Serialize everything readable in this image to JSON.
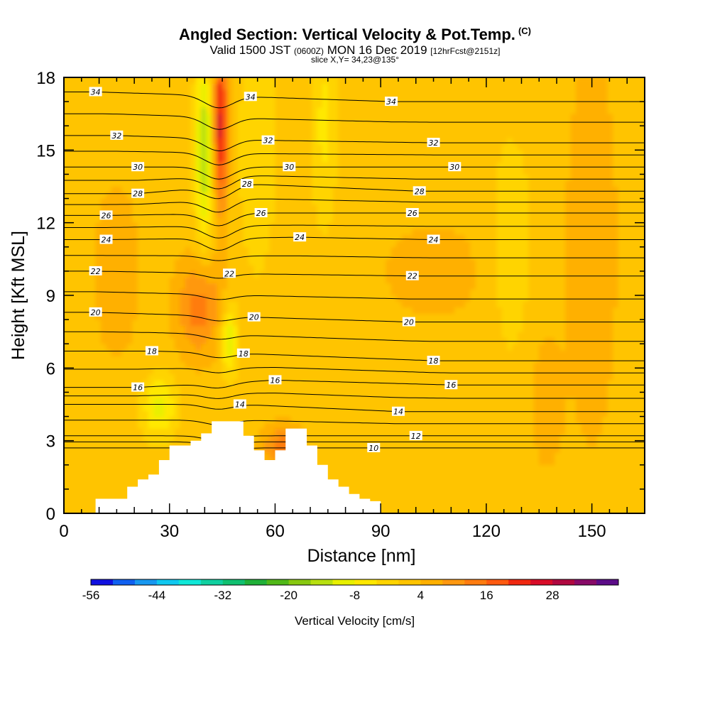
{
  "header": {
    "title": "Angled Section: Vertical Velocity & Pot.Temp.",
    "title_units": "(C)",
    "valid_prefix": "Valid 1500 JST",
    "valid_utc": "(0600Z)",
    "valid_date": "MON 16 Dec 2019",
    "valid_fcst": "[12hrFcst@2151z]",
    "slice": "slice X,Y= 34,23@135°"
  },
  "chart_data": {
    "type": "heatmap",
    "xlabel": "Distance [nm]",
    "ylabel": "Height [Kft MSL]",
    "xlim": [
      0,
      165
    ],
    "ylim": [
      0,
      18
    ],
    "xticks": [
      0,
      30,
      60,
      90,
      120,
      150
    ],
    "yticks": [
      0,
      3,
      6,
      9,
      12,
      15,
      18
    ],
    "colorbar": {
      "label": "Vertical Velocity [cm/s]",
      "ticks": [
        -56,
        -44,
        -32,
        -20,
        -8,
        4,
        16,
        28
      ],
      "bins": [
        -56,
        -52,
        -48,
        -44,
        -40,
        -36,
        -32,
        -28,
        -24,
        -20,
        -16,
        -12,
        -8,
        -4,
        0,
        4,
        8,
        12,
        16,
        20,
        24,
        28,
        32,
        36,
        40
      ],
      "colors": [
        "#1010e0",
        "#1060f0",
        "#1898f0",
        "#10c8f0",
        "#10e8d8",
        "#10d0a0",
        "#10c070",
        "#20b038",
        "#50b818",
        "#88c810",
        "#b8e010",
        "#e8f000",
        "#ffe800",
        "#ffd400",
        "#ffc400",
        "#ffb000",
        "#ff9810",
        "#ff7c10",
        "#ff5a10",
        "#f02810",
        "#d80c28",
        "#b00840",
        "#880a68",
        "#5c0c88"
      ]
    },
    "background_velocity": 2,
    "velocity_features": [
      {
        "x": 40,
        "y": 15,
        "sx": 1.8,
        "sy": 2.6,
        "value": -18
      },
      {
        "x": 44.5,
        "y": 16,
        "sx": 1.5,
        "sy": 2.4,
        "value": 24
      },
      {
        "x": 38.5,
        "y": 8.5,
        "sx": 4.5,
        "sy": 1.4,
        "value": 12
      },
      {
        "x": 47,
        "y": 7.2,
        "sx": 1.6,
        "sy": 1.0,
        "value": -14
      },
      {
        "x": 27,
        "y": 4.4,
        "sx": 3.5,
        "sy": 0.9,
        "value": -12
      },
      {
        "x": 62,
        "y": 2.8,
        "sx": 4.0,
        "sy": 0.6,
        "value": 12
      },
      {
        "x": 55,
        "y": 15,
        "sx": 3.5,
        "sy": 3.5,
        "value": -6
      },
      {
        "x": 74,
        "y": 16,
        "sx": 2.5,
        "sy": 3.0,
        "value": -7
      },
      {
        "x": 127,
        "y": 11,
        "sx": 4.0,
        "sy": 3.0,
        "value": -6
      },
      {
        "x": 105,
        "y": 10,
        "sx": 15,
        "sy": 2.0,
        "value": 3
      },
      {
        "x": 15,
        "y": 10,
        "sx": 7,
        "sy": 4.0,
        "value": 3
      },
      {
        "x": 150,
        "y": 11,
        "sx": 6,
        "sy": 7.0,
        "value": 4
      },
      {
        "x": 137,
        "y": 4.5,
        "sx": 3,
        "sy": 1.8,
        "value": 5
      }
    ],
    "terrain": [
      [
        9,
        0.6
      ],
      [
        12,
        0.6
      ],
      [
        15,
        0.6
      ],
      [
        18,
        1.1
      ],
      [
        21,
        1.4
      ],
      [
        24,
        1.6
      ],
      [
        27,
        2.2
      ],
      [
        30,
        2.8
      ],
      [
        33,
        2.8
      ],
      [
        36,
        3.0
      ],
      [
        39,
        3.3
      ],
      [
        42,
        3.8
      ],
      [
        45,
        3.8
      ],
      [
        48,
        3.8
      ],
      [
        51,
        3.2
      ],
      [
        54,
        2.6
      ],
      [
        57,
        2.2
      ],
      [
        60,
        2.6
      ],
      [
        63,
        3.5
      ],
      [
        66,
        3.5
      ],
      [
        69,
        2.8
      ],
      [
        72,
        2.0
      ],
      [
        75,
        1.4
      ],
      [
        78,
        1.1
      ],
      [
        81,
        0.8
      ],
      [
        84,
        0.6
      ],
      [
        87,
        0.5
      ],
      [
        90,
        0.0
      ]
    ],
    "isotherm_levels": [
      10,
      12,
      14,
      16,
      18,
      20,
      22,
      24,
      26,
      28,
      30,
      32,
      34
    ],
    "isotherm_labels": [
      {
        "text": "34",
        "x": 9,
        "y": 17.4
      },
      {
        "text": "34",
        "x": 53,
        "y": 17.2
      },
      {
        "text": "34",
        "x": 93,
        "y": 17.0
      },
      {
        "text": "32",
        "x": 15,
        "y": 15.6
      },
      {
        "text": "32",
        "x": 58,
        "y": 15.4
      },
      {
        "text": "32",
        "x": 105,
        "y": 15.3
      },
      {
        "text": "30",
        "x": 21,
        "y": 14.3
      },
      {
        "text": "30",
        "x": 64,
        "y": 14.3
      },
      {
        "text": "30",
        "x": 111,
        "y": 14.3
      },
      {
        "text": "28",
        "x": 21,
        "y": 13.2
      },
      {
        "text": "28",
        "x": 52,
        "y": 13.6
      },
      {
        "text": "28",
        "x": 101,
        "y": 13.3
      },
      {
        "text": "26",
        "x": 12,
        "y": 12.3
      },
      {
        "text": "26",
        "x": 56,
        "y": 12.4
      },
      {
        "text": "26",
        "x": 99,
        "y": 12.4
      },
      {
        "text": "24",
        "x": 12,
        "y": 11.3
      },
      {
        "text": "24",
        "x": 67,
        "y": 11.4
      },
      {
        "text": "24",
        "x": 105,
        "y": 11.3
      },
      {
        "text": "22",
        "x": 9,
        "y": 10.0
      },
      {
        "text": "22",
        "x": 47,
        "y": 9.9
      },
      {
        "text": "22",
        "x": 99,
        "y": 9.8
      },
      {
        "text": "20",
        "x": 9,
        "y": 8.3
      },
      {
        "text": "20",
        "x": 54,
        "y": 8.1
      },
      {
        "text": "20",
        "x": 98,
        "y": 7.9
      },
      {
        "text": "18",
        "x": 25,
        "y": 6.7
      },
      {
        "text": "18",
        "x": 51,
        "y": 6.6
      },
      {
        "text": "18",
        "x": 105,
        "y": 6.3
      },
      {
        "text": "16",
        "x": 21,
        "y": 5.2
      },
      {
        "text": "16",
        "x": 60,
        "y": 5.5
      },
      {
        "text": "16",
        "x": 110,
        "y": 5.3
      },
      {
        "text": "14",
        "x": 50,
        "y": 4.5
      },
      {
        "text": "14",
        "x": 95,
        "y": 4.2
      },
      {
        "text": "12",
        "x": 100,
        "y": 3.2
      },
      {
        "text": "10",
        "x": 88,
        "y": 2.7
      }
    ]
  }
}
